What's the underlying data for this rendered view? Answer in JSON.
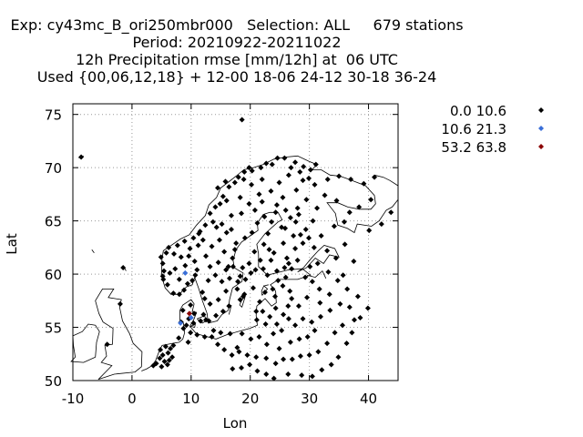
{
  "chart_data": {
    "type": "scatter",
    "title_lines": [
      "Exp: cy43mc_B_ori250mbr000   Selection: ALL     679 stations",
      "Period: 20210922-20211022",
      "12h Precipitation rmse [mm/12h] at  06 UTC",
      "Used {00,06,12,18} + 12-00 18-06 24-12 30-18 36-24"
    ],
    "xlabel": "Lon",
    "ylabel": "Lat",
    "xlim": [
      -10,
      45
    ],
    "ylim": [
      50,
      76
    ],
    "xticks": [
      -10,
      0,
      10,
      20,
      30,
      40
    ],
    "yticks": [
      50,
      55,
      60,
      65,
      70,
      75
    ],
    "grid": true,
    "legend_position": "right",
    "legend": [
      {
        "label": "0.0 10.6",
        "color": "#000000"
      },
      {
        "label": "10.6 21.3",
        "color": "#3a6fd8"
      },
      {
        "label": "53.2 63.8",
        "color": "#8b0000"
      }
    ],
    "coastline_color": "#000000",
    "series": [
      {
        "class": 0,
        "points": [
          [
            -8.6,
            71.0
          ],
          [
            18.6,
            74.5
          ],
          [
            6.0,
            51.5
          ],
          [
            5.5,
            51.8
          ],
          [
            4.7,
            52.1
          ],
          [
            5.2,
            52.4
          ],
          [
            6.1,
            52.6
          ],
          [
            6.5,
            53.0
          ],
          [
            5.7,
            53.2
          ],
          [
            4.8,
            52.9
          ],
          [
            6.8,
            52.2
          ],
          [
            7.0,
            53.3
          ],
          [
            5.0,
            51.3
          ],
          [
            4.1,
            51.6
          ],
          [
            3.6,
            51.4
          ],
          [
            6.3,
            51.9
          ],
          [
            6.0,
            59.0
          ],
          [
            5.4,
            60.3
          ],
          [
            5.2,
            61.0
          ],
          [
            5.3,
            59.5
          ],
          [
            6.4,
            60.1
          ],
          [
            7.0,
            58.2
          ],
          [
            8.0,
            58.1
          ],
          [
            8.8,
            58.5
          ],
          [
            9.4,
            59.1
          ],
          [
            10.2,
            59.4
          ],
          [
            10.7,
            59.9
          ],
          [
            11.0,
            60.4
          ],
          [
            10.6,
            61.2
          ],
          [
            9.6,
            61.7
          ],
          [
            8.3,
            61.6
          ],
          [
            7.1,
            61.9
          ],
          [
            6.2,
            62.5
          ],
          [
            7.7,
            62.7
          ],
          [
            8.9,
            63.1
          ],
          [
            10.4,
            63.4
          ],
          [
            11.3,
            63.8
          ],
          [
            12.4,
            64.6
          ],
          [
            13.2,
            65.7
          ],
          [
            14.1,
            66.3
          ],
          [
            15.4,
            67.3
          ],
          [
            16.4,
            68.2
          ],
          [
            18.0,
            69.1
          ],
          [
            19.0,
            69.6
          ],
          [
            20.3,
            69.7
          ],
          [
            21.8,
            70.0
          ],
          [
            23.7,
            70.3
          ],
          [
            25.8,
            70.9
          ],
          [
            27.6,
            70.5
          ],
          [
            29.0,
            70.1
          ],
          [
            30.2,
            69.8
          ],
          [
            31.1,
            70.3
          ],
          [
            26.5,
            69.3
          ],
          [
            24.9,
            68.6
          ],
          [
            22.0,
            68.9
          ],
          [
            20.2,
            68.4
          ],
          [
            21.5,
            67.5
          ],
          [
            23.5,
            67.8
          ],
          [
            25.5,
            67.2
          ],
          [
            27.8,
            67.9
          ],
          [
            28.9,
            68.8
          ],
          [
            29.5,
            67.0
          ],
          [
            28.0,
            66.2
          ],
          [
            26.0,
            66.0
          ],
          [
            24.3,
            65.8
          ],
          [
            22.4,
            65.4
          ],
          [
            21.2,
            64.8
          ],
          [
            20.3,
            63.9
          ],
          [
            19.1,
            63.4
          ],
          [
            17.6,
            62.9
          ],
          [
            17.4,
            62.3
          ],
          [
            17.0,
            61.5
          ],
          [
            17.1,
            60.7
          ],
          [
            18.3,
            59.8
          ],
          [
            17.9,
            59.3
          ],
          [
            16.5,
            59.6
          ],
          [
            15.2,
            59.3
          ],
          [
            14.1,
            59.9
          ],
          [
            13.2,
            60.7
          ],
          [
            12.5,
            61.7
          ],
          [
            13.5,
            62.6
          ],
          [
            14.8,
            63.2
          ],
          [
            16.0,
            63.9
          ],
          [
            15.2,
            64.7
          ],
          [
            16.8,
            65.5
          ],
          [
            18.5,
            65.7
          ],
          [
            19.8,
            66.6
          ],
          [
            18.3,
            67.2
          ],
          [
            16.8,
            64.2
          ],
          [
            14.3,
            64.4
          ],
          [
            15.6,
            62.1
          ],
          [
            14.6,
            61.1
          ],
          [
            15.9,
            60.4
          ],
          [
            12.9,
            59.4
          ],
          [
            11.9,
            58.3
          ],
          [
            12.3,
            57.7
          ],
          [
            13.2,
            57.2
          ],
          [
            14.6,
            57.6
          ],
          [
            15.9,
            58.4
          ],
          [
            16.4,
            57.0
          ],
          [
            15.4,
            56.5
          ],
          [
            14.2,
            56.1
          ],
          [
            13.0,
            55.6
          ],
          [
            12.1,
            56.2
          ],
          [
            18.3,
            57.6
          ],
          [
            18.8,
            57.9
          ],
          [
            19.2,
            59.5
          ],
          [
            20.9,
            60.4
          ],
          [
            22.2,
            60.5
          ],
          [
            23.5,
            61.3
          ],
          [
            24.5,
            60.3
          ],
          [
            25.8,
            60.6
          ],
          [
            27.0,
            60.5
          ],
          [
            26.2,
            61.5
          ],
          [
            27.6,
            62.4
          ],
          [
            28.9,
            62.9
          ],
          [
            29.9,
            63.4
          ],
          [
            27.3,
            63.6
          ],
          [
            25.6,
            62.9
          ],
          [
            24.0,
            62.0
          ],
          [
            22.3,
            62.8
          ],
          [
            23.0,
            63.8
          ],
          [
            25.3,
            64.4
          ],
          [
            27.7,
            64.9
          ],
          [
            29.4,
            64.2
          ],
          [
            28.2,
            65.6
          ],
          [
            26.8,
            65.3
          ],
          [
            23.6,
            64.9
          ],
          [
            21.7,
            61.3
          ],
          [
            22.9,
            59.9
          ],
          [
            20.1,
            60.1
          ],
          [
            24.7,
            59.4
          ],
          [
            26.7,
            58.4
          ],
          [
            25.5,
            58.9
          ],
          [
            22.5,
            58.3
          ],
          [
            24.2,
            57.9
          ],
          [
            21.6,
            57.4
          ],
          [
            27.0,
            57.7
          ],
          [
            26.4,
            57.0
          ],
          [
            24.3,
            56.8
          ],
          [
            22.1,
            56.5
          ],
          [
            21.0,
            56.5
          ],
          [
            23.3,
            56.0
          ],
          [
            25.6,
            56.2
          ],
          [
            26.5,
            55.8
          ],
          [
            24.5,
            55.3
          ],
          [
            22.6,
            55.3
          ],
          [
            21.1,
            55.7
          ],
          [
            25.3,
            54.7
          ],
          [
            23.9,
            54.4
          ],
          [
            21.5,
            54.1
          ],
          [
            20.1,
            53.9
          ],
          [
            22.8,
            53.4
          ],
          [
            24.9,
            53.0
          ],
          [
            26.8,
            53.6
          ],
          [
            28.3,
            53.9
          ],
          [
            29.7,
            54.1
          ],
          [
            30.9,
            54.7
          ],
          [
            27.6,
            55.2
          ],
          [
            28.9,
            55.8
          ],
          [
            30.4,
            55.5
          ],
          [
            31.9,
            56.0
          ],
          [
            33.5,
            56.6
          ],
          [
            35.2,
            57.2
          ],
          [
            36.8,
            56.9
          ],
          [
            37.6,
            55.7
          ],
          [
            35.6,
            55.2
          ],
          [
            34.3,
            54.5
          ],
          [
            33.0,
            53.5
          ],
          [
            31.5,
            52.7
          ],
          [
            30.0,
            52.4
          ],
          [
            28.5,
            52.3
          ],
          [
            27.1,
            52.0
          ],
          [
            25.6,
            52.0
          ],
          [
            24.3,
            51.6
          ],
          [
            22.7,
            52.1
          ],
          [
            21.0,
            52.2
          ],
          [
            19.5,
            52.4
          ],
          [
            18.1,
            52.7
          ],
          [
            16.9,
            52.4
          ],
          [
            15.6,
            52.9
          ],
          [
            14.5,
            53.4
          ],
          [
            13.5,
            54.1
          ],
          [
            15.0,
            54.5
          ],
          [
            16.6,
            54.4
          ],
          [
            18.6,
            54.4
          ],
          [
            17.8,
            53.1
          ],
          [
            19.9,
            51.5
          ],
          [
            18.5,
            51.2
          ],
          [
            17.0,
            51.1
          ],
          [
            21.2,
            50.9
          ],
          [
            22.7,
            50.6
          ],
          [
            24.0,
            50.2
          ],
          [
            26.4,
            50.6
          ],
          [
            28.7,
            50.5
          ],
          [
            30.5,
            50.4
          ],
          [
            32.1,
            51.0
          ],
          [
            33.7,
            51.5
          ],
          [
            34.9,
            52.2
          ],
          [
            36.3,
            53.5
          ],
          [
            37.2,
            54.5
          ],
          [
            38.6,
            55.9
          ],
          [
            39.9,
            56.8
          ],
          [
            38.2,
            57.9
          ],
          [
            36.4,
            58.6
          ],
          [
            34.8,
            59.4
          ],
          [
            33.2,
            60.2
          ],
          [
            31.4,
            61.0
          ],
          [
            30.1,
            60.7
          ],
          [
            29.3,
            59.7
          ],
          [
            30.5,
            59.3
          ],
          [
            31.7,
            58.6
          ],
          [
            29.6,
            57.8
          ],
          [
            28.2,
            57.0
          ],
          [
            31.8,
            57.3
          ],
          [
            33.4,
            58.1
          ],
          [
            35.7,
            59.9
          ],
          [
            34.5,
            61.5
          ],
          [
            33.0,
            62.2
          ],
          [
            32.0,
            63.6
          ],
          [
            34.2,
            64.5
          ],
          [
            35.9,
            64.9
          ],
          [
            36.8,
            65.8
          ],
          [
            38.4,
            66.3
          ],
          [
            40.4,
            67.0
          ],
          [
            41.0,
            69.1
          ],
          [
            39.2,
            68.5
          ],
          [
            37.0,
            68.9
          ],
          [
            35.0,
            69.2
          ],
          [
            33.1,
            68.9
          ],
          [
            32.6,
            67.4
          ],
          [
            34.6,
            66.9
          ],
          [
            31.3,
            66.2
          ],
          [
            30.6,
            65.0
          ],
          [
            36.0,
            62.8
          ],
          [
            37.5,
            61.2
          ],
          [
            40.1,
            64.1
          ],
          [
            43.8,
            65.8
          ],
          [
            42.2,
            64.7
          ],
          [
            9.6,
            55.8
          ],
          [
            10.5,
            56.3
          ],
          [
            9.9,
            57.1
          ],
          [
            8.6,
            56.6
          ],
          [
            8.3,
            55.5
          ],
          [
            9.2,
            55.2
          ],
          [
            10.4,
            55.4
          ],
          [
            11.6,
            55.6
          ],
          [
            12.5,
            55.7
          ],
          [
            11.0,
            54.3
          ],
          [
            9.9,
            54.5
          ],
          [
            8.7,
            54.9
          ],
          [
            12.3,
            54.1
          ],
          [
            13.8,
            54.7
          ],
          [
            7.9,
            54.0
          ],
          [
            9.5,
            53.6
          ],
          [
            5.2,
            59.8
          ],
          [
            4.9,
            61.6
          ],
          [
            5.8,
            62.0
          ],
          [
            7.3,
            60.5
          ],
          [
            8.0,
            59.5
          ],
          [
            9.0,
            60.8
          ],
          [
            9.8,
            62.4
          ],
          [
            11.2,
            62.7
          ],
          [
            12.0,
            63.2
          ],
          [
            11.5,
            64.0
          ],
          [
            13.7,
            64.9
          ],
          [
            14.9,
            66.6
          ],
          [
            16.0,
            66.9
          ],
          [
            17.4,
            68.6
          ],
          [
            14.5,
            68.1
          ],
          [
            15.8,
            68.7
          ],
          [
            18.9,
            68.9
          ],
          [
            19.8,
            70.0
          ],
          [
            22.7,
            70.4
          ],
          [
            24.6,
            70.9
          ],
          [
            26.9,
            70.0
          ],
          [
            28.4,
            69.6
          ],
          [
            29.9,
            69.0
          ],
          [
            30.9,
            68.4
          ],
          [
            20.8,
            66.0
          ],
          [
            22.0,
            66.8
          ],
          [
            24.5,
            66.5
          ],
          [
            25.9,
            64.3
          ],
          [
            28.5,
            63.7
          ],
          [
            30.8,
            62.5
          ],
          [
            26.5,
            61.0
          ],
          [
            28.0,
            61.3
          ],
          [
            23.2,
            62.3
          ],
          [
            20.7,
            62.1
          ],
          [
            19.8,
            61.0
          ],
          [
            18.7,
            60.6
          ],
          [
            16.3,
            60.7
          ],
          [
            17.8,
            58.6
          ],
          [
            19.0,
            58.1
          ],
          [
            20.5,
            58.7
          ],
          [
            23.8,
            58.6
          ],
          [
            26.0,
            59.7
          ],
          [
            -1.5,
            60.6
          ],
          [
            -2.0,
            57.2
          ],
          [
            -4.2,
            53.4
          ]
        ]
      },
      {
        "class": 1,
        "points": [
          [
            9.0,
            60.1
          ],
          [
            8.2,
            55.4
          ],
          [
            10.0,
            55.9
          ]
        ]
      },
      {
        "class": 2,
        "points": [
          [
            9.7,
            56.3
          ]
        ]
      }
    ]
  }
}
